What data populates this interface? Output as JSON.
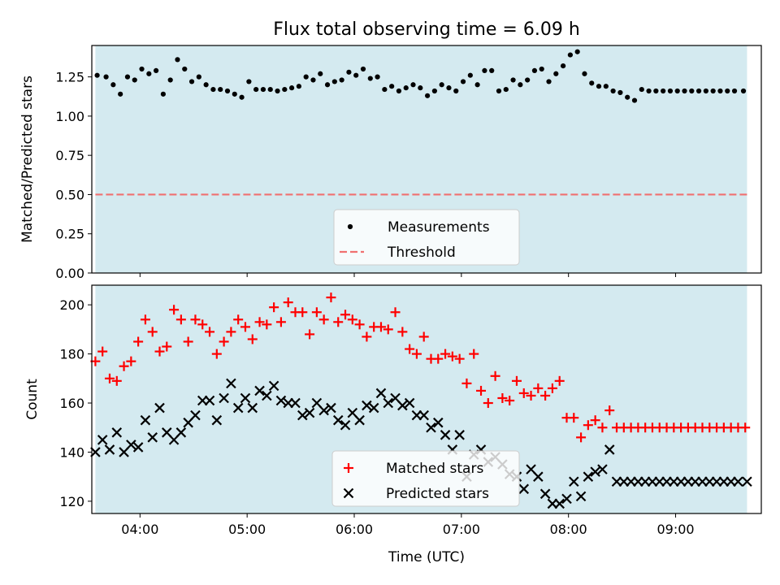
{
  "chart_data": {
    "title": "Flux total observing time = 6.09 h",
    "shaded_color": "#d4eaf0",
    "x_range": [
      "03:33",
      "09:48"
    ],
    "shaded_range": [
      "03:35",
      "09:40"
    ],
    "top": {
      "type": "scatter",
      "ylabel": "Matched/Predicted stars",
      "ylim": [
        0,
        1.45
      ],
      "yticks": [
        "0.00",
        "0.25",
        "0.50",
        "0.75",
        "1.00",
        "1.25"
      ],
      "threshold": 0.5,
      "legend_position": "lower center",
      "legend": [
        {
          "label": "Measurements",
          "color": "#000000",
          "marker": "dot"
        },
        {
          "label": "Threshold",
          "color": "#f07070",
          "marker": "dashed-line"
        }
      ],
      "x": [
        "03:36",
        "03:41",
        "03:45",
        "03:49",
        "03:53",
        "03:57",
        "04:01",
        "04:05",
        "04:09",
        "04:13",
        "04:17",
        "04:21",
        "04:25",
        "04:29",
        "04:33",
        "04:37",
        "04:41",
        "04:45",
        "04:49",
        "04:53",
        "04:57",
        "05:01",
        "05:05",
        "05:09",
        "05:13",
        "05:17",
        "05:21",
        "05:25",
        "05:29",
        "05:33",
        "05:37",
        "05:41",
        "05:45",
        "05:49",
        "05:53",
        "05:57",
        "06:01",
        "06:05",
        "06:09",
        "06:13",
        "06:17",
        "06:21",
        "06:25",
        "06:29",
        "06:33",
        "06:37",
        "06:41",
        "06:45",
        "06:49",
        "06:53",
        "06:57",
        "07:01",
        "07:05",
        "07:09",
        "07:13",
        "07:17",
        "07:21",
        "07:25",
        "07:29",
        "07:33",
        "07:37",
        "07:41",
        "07:45",
        "07:49",
        "07:53",
        "07:57",
        "08:01",
        "08:05",
        "08:09",
        "08:13",
        "08:17",
        "08:21",
        "08:25",
        "08:29",
        "08:33",
        "08:37",
        "08:41",
        "08:45",
        "08:49",
        "08:53",
        "08:57",
        "09:01",
        "09:05",
        "09:09",
        "09:13",
        "09:17",
        "09:21",
        "09:25",
        "09:29",
        "09:33",
        "09:38"
      ],
      "values": [
        1.26,
        1.25,
        1.2,
        1.14,
        1.25,
        1.23,
        1.3,
        1.27,
        1.29,
        1.14,
        1.23,
        1.36,
        1.3,
        1.22,
        1.25,
        1.2,
        1.17,
        1.17,
        1.16,
        1.14,
        1.12,
        1.22,
        1.17,
        1.17,
        1.17,
        1.16,
        1.17,
        1.18,
        1.19,
        1.25,
        1.23,
        1.27,
        1.2,
        1.22,
        1.23,
        1.28,
        1.26,
        1.3,
        1.24,
        1.25,
        1.17,
        1.19,
        1.16,
        1.18,
        1.2,
        1.18,
        1.13,
        1.16,
        1.2,
        1.18,
        1.16,
        1.22,
        1.26,
        1.2,
        1.29,
        1.29,
        1.16,
        1.17,
        1.23,
        1.2,
        1.23,
        1.29,
        1.3,
        1.22,
        1.27,
        1.32,
        1.39,
        1.41,
        1.27,
        1.21,
        1.19,
        1.19,
        1.16,
        1.15,
        1.12,
        1.1,
        1.17,
        1.16,
        1.16,
        1.16,
        1.16,
        1.16,
        1.16,
        1.16,
        1.16,
        1.16,
        1.16,
        1.16,
        1.16,
        1.16,
        1.16
      ]
    },
    "bottom": {
      "type": "scatter",
      "ylabel": "Count",
      "ylim": [
        115,
        208
      ],
      "yticks": [
        "120",
        "140",
        "160",
        "180",
        "200"
      ],
      "xlabel": "Time (UTC)",
      "xticks": [
        "04:00",
        "05:00",
        "06:00",
        "07:00",
        "08:00",
        "09:00"
      ],
      "legend_position": "lower center",
      "series": [
        {
          "name": "Matched stars",
          "color": "#ff0000",
          "marker": "plus",
          "x": [
            "03:35",
            "03:39",
            "03:43",
            "03:47",
            "03:51",
            "03:55",
            "03:59",
            "04:03",
            "04:07",
            "04:11",
            "04:15",
            "04:19",
            "04:23",
            "04:27",
            "04:31",
            "04:35",
            "04:39",
            "04:43",
            "04:47",
            "04:51",
            "04:55",
            "04:59",
            "05:03",
            "05:07",
            "05:11",
            "05:15",
            "05:19",
            "05:23",
            "05:27",
            "05:31",
            "05:35",
            "05:39",
            "05:43",
            "05:47",
            "05:51",
            "05:55",
            "05:59",
            "06:03",
            "06:07",
            "06:11",
            "06:15",
            "06:19",
            "06:23",
            "06:27",
            "06:31",
            "06:35",
            "06:39",
            "06:43",
            "06:47",
            "06:51",
            "06:55",
            "06:59",
            "07:03",
            "07:07",
            "07:11",
            "07:15",
            "07:19",
            "07:23",
            "07:27",
            "07:31",
            "07:35",
            "07:39",
            "07:43",
            "07:47",
            "07:51",
            "07:55",
            "07:59",
            "08:03",
            "08:07",
            "08:11",
            "08:15",
            "08:19",
            "08:23",
            "08:27",
            "08:31",
            "08:35",
            "08:39",
            "08:43",
            "08:47",
            "08:51",
            "08:55",
            "08:59",
            "09:03",
            "09:07",
            "09:11",
            "09:15",
            "09:19",
            "09:23",
            "09:27",
            "09:31",
            "09:35",
            "09:39"
          ],
          "values": [
            177,
            181,
            170,
            169,
            175,
            177,
            185,
            194,
            189,
            181,
            183,
            198,
            194,
            185,
            194,
            192,
            189,
            180,
            185,
            189,
            194,
            191,
            186,
            193,
            192,
            199,
            193,
            201,
            197,
            197,
            188,
            197,
            194,
            203,
            193,
            196,
            194,
            192,
            187,
            191,
            191,
            190,
            197,
            189,
            182,
            180,
            187,
            178,
            178,
            180,
            179,
            178,
            168,
            180,
            165,
            160,
            171,
            162,
            161,
            169,
            164,
            163,
            166,
            163,
            166,
            169,
            154,
            154,
            146,
            151,
            153,
            150,
            157,
            150,
            150,
            150,
            150,
            150,
            150,
            150,
            150,
            150,
            150,
            150,
            150,
            150,
            150,
            150,
            150,
            150,
            150,
            150
          ]
        },
        {
          "name": "Predicted stars",
          "color": "#000000",
          "marker": "x",
          "x": [
            "03:35",
            "03:39",
            "03:43",
            "03:47",
            "03:51",
            "03:55",
            "03:59",
            "04:03",
            "04:07",
            "04:11",
            "04:15",
            "04:19",
            "04:23",
            "04:27",
            "04:31",
            "04:35",
            "04:39",
            "04:43",
            "04:47",
            "04:51",
            "04:55",
            "04:59",
            "05:03",
            "05:07",
            "05:11",
            "05:15",
            "05:19",
            "05:23",
            "05:27",
            "05:31",
            "05:35",
            "05:39",
            "05:43",
            "05:47",
            "05:51",
            "05:55",
            "05:59",
            "06:03",
            "06:07",
            "06:11",
            "06:15",
            "06:19",
            "06:23",
            "06:27",
            "06:31",
            "06:35",
            "06:39",
            "06:43",
            "06:47",
            "06:51",
            "06:55",
            "06:59",
            "07:03",
            "07:07",
            "07:11",
            "07:15",
            "07:19",
            "07:23",
            "07:27",
            "07:31",
            "07:35",
            "07:39",
            "07:43",
            "07:47",
            "07:51",
            "07:55",
            "07:59",
            "08:03",
            "08:07",
            "08:11",
            "08:15",
            "08:19",
            "08:23",
            "08:27",
            "08:31",
            "08:35",
            "08:39",
            "08:43",
            "08:47",
            "08:51",
            "08:55",
            "08:59",
            "09:03",
            "09:07",
            "09:11",
            "09:15",
            "09:19",
            "09:23",
            "09:27",
            "09:31",
            "09:35",
            "09:40"
          ],
          "values": [
            140,
            145,
            141,
            148,
            140,
            143,
            142,
            153,
            146,
            158,
            148,
            145,
            148,
            152,
            155,
            161,
            161,
            153,
            162,
            168,
            158,
            162,
            158,
            165,
            163,
            167,
            161,
            160,
            160,
            155,
            156,
            160,
            157,
            158,
            153,
            151,
            156,
            153,
            159,
            158,
            164,
            160,
            162,
            159,
            160,
            155,
            155,
            150,
            152,
            147,
            141,
            147,
            130,
            139,
            141,
            136,
            138,
            135,
            131,
            130,
            125,
            133,
            130,
            123,
            119,
            119,
            121,
            128,
            122,
            130,
            132,
            133,
            141,
            128,
            128,
            128,
            128,
            128,
            128,
            128,
            128,
            128,
            128,
            128,
            128,
            128,
            128,
            128,
            128,
            128,
            128,
            128
          ]
        }
      ]
    }
  }
}
